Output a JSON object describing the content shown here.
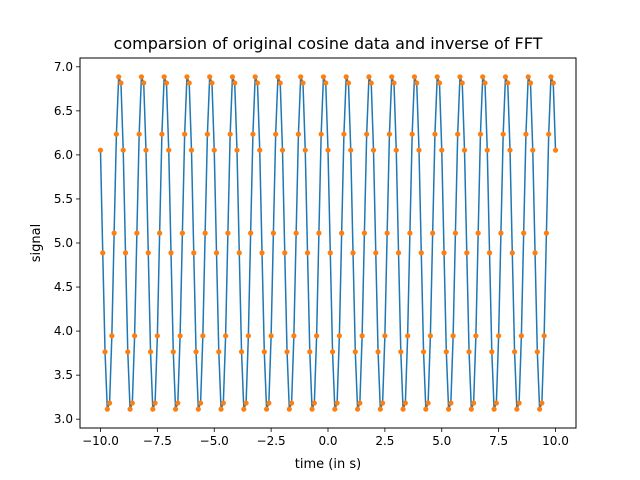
{
  "chart_data": {
    "type": "line",
    "title": "comparsion of original cosine data and inverse of FFT",
    "xlabel": "time (in s)",
    "ylabel": "signal",
    "xlim": [
      -10.9,
      10.9
    ],
    "ylim": [
      2.9,
      7.1
    ],
    "x_ticks": [
      -10.0,
      -7.5,
      -5.0,
      -2.5,
      0.0,
      2.5,
      5.0,
      7.5,
      10.0
    ],
    "x_tick_labels": [
      "−10.0",
      "−7.5",
      "−5.0",
      "−2.5",
      "0.0",
      "2.5",
      "5.0",
      "7.5",
      "10.0"
    ],
    "y_ticks": [
      3.0,
      3.5,
      4.0,
      4.5,
      5.0,
      5.5,
      6.0,
      6.5,
      7.0
    ],
    "y_tick_labels": [
      "3.0",
      "3.5",
      "4.0",
      "4.5",
      "5.0",
      "5.5",
      "6.0",
      "6.5",
      "7.0"
    ],
    "grid": false,
    "legend": "none",
    "signal": {
      "form": "offset + amplitude * cos(2*pi*frequency*t + phase)",
      "offset": 5.0,
      "amplitude": 1.95,
      "frequency": 1.0,
      "phase": 1.0,
      "t_start": -10.0,
      "t_end": 10.0,
      "sample_step": 0.1
    },
    "series": [
      {
        "marker": "line",
        "color": "#1f77b4"
      },
      {
        "marker": "dots",
        "color": "#ff7f0e"
      }
    ]
  }
}
